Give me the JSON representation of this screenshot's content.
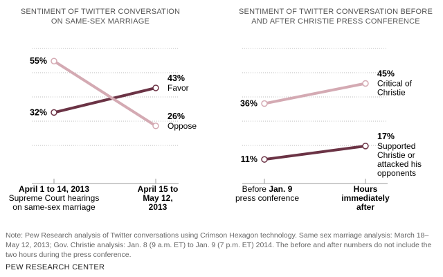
{
  "chart_data": [
    {
      "type": "line",
      "title_lines": [
        "SENTIMENT OF TWITTER CONVERSATION",
        "ON SAME-SEX MARRIAGE"
      ],
      "categories": [
        [
          "April 1 to 14, 2013",
          "Supreme Court hearings",
          "on same-sex marriage"
        ],
        [
          "April 15 to",
          "May 12,",
          "2013"
        ]
      ],
      "series": [
        {
          "name": "Favor",
          "values": [
            32,
            43
          ],
          "color": "#6b3345",
          "value_labels": [
            "32%",
            "43%"
          ],
          "end_label": [
            "Favor"
          ]
        },
        {
          "name": "Oppose",
          "values": [
            55,
            26
          ],
          "color": "#d4aab3",
          "value_labels": [
            "55%",
            "26%"
          ],
          "end_label": [
            "Oppose"
          ]
        }
      ],
      "ylim": [
        0,
        70
      ],
      "grid": true
    },
    {
      "type": "line",
      "title_lines": [
        "SENTIMENT OF TWITTER CONVERSATION BEFORE",
        "AND AFTER CHRISTIE PRESS CONFERENCE"
      ],
      "categories": [
        [
          "Before Jan. 9",
          "press conference"
        ],
        [
          "Hours",
          "immediately",
          "after"
        ]
      ],
      "series": [
        {
          "name": "Critical of Christie",
          "values": [
            36,
            45
          ],
          "color": "#d4aab3",
          "value_labels": [
            "36%",
            "45%"
          ],
          "end_label": [
            "Critical of",
            "Christie"
          ]
        },
        {
          "name": "Supported Christie or attacked his opponents",
          "values": [
            11,
            17
          ],
          "color": "#6b3345",
          "value_labels": [
            "11%",
            "17%"
          ],
          "end_label": [
            "Supported",
            "Christie or",
            "attacked his",
            "opponents"
          ]
        }
      ],
      "ylim": [
        0,
        70
      ],
      "grid": true
    }
  ],
  "note": "Note: Pew Research analysis of Twitter conversations using Crimson Hexagon technology. Same sex marriage analysis: March 18–May 12, 2013; Gov. Christie analysis: Jan. 8 (9 a.m. ET) to Jan. 9 (7 p.m. ET) 2014. The before and after numbers do not include the two hours during the press conference.",
  "source": "PEW RESEARCH CENTER"
}
